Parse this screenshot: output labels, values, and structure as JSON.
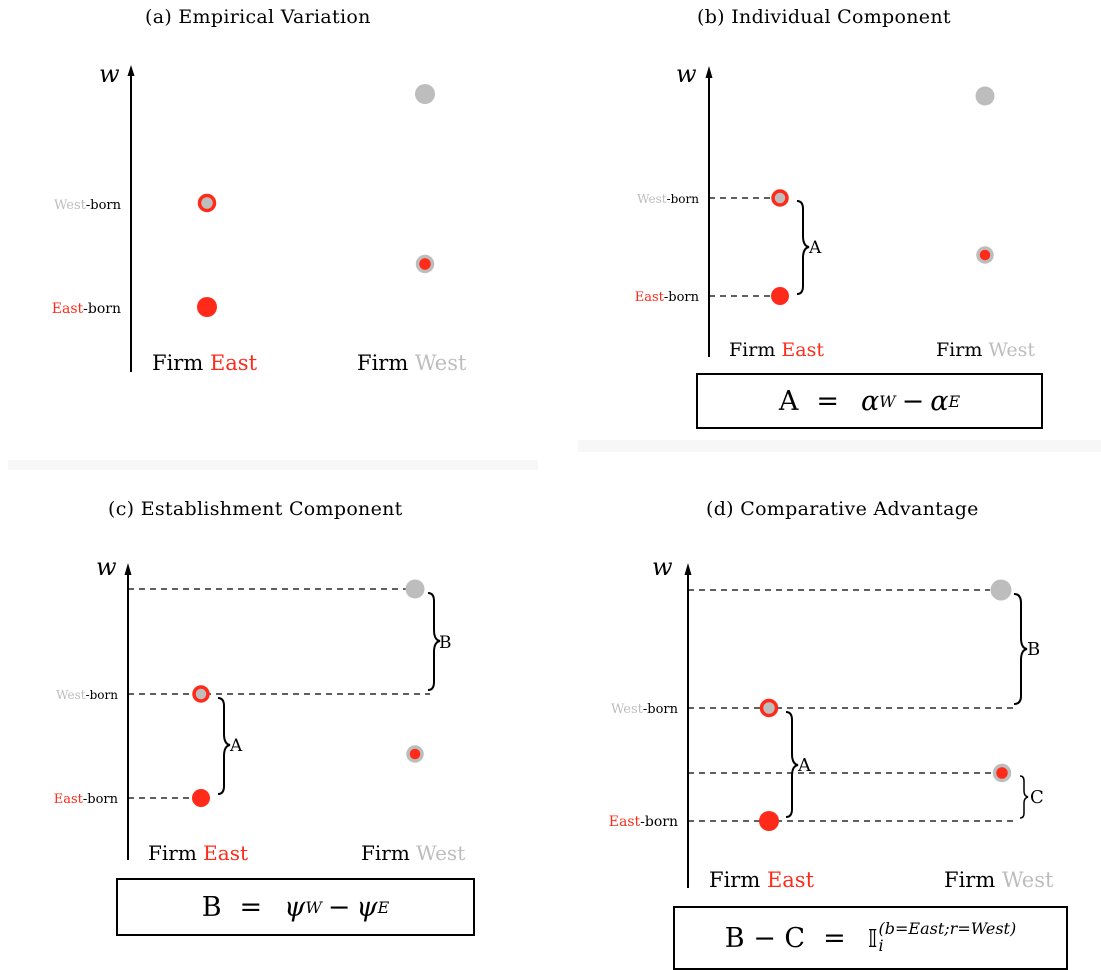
{
  "colors": {
    "east": "#ff2a1a",
    "west": "#bdbdbd",
    "axis": "#000000"
  },
  "axis_label": "w",
  "firm_word": "Firm",
  "east_word": "East",
  "west_word": "West",
  "born_suffix": "-born",
  "panels": [
    {
      "title": "(a) Empirical Variation"
    },
    {
      "title": "(b) Individual Component"
    },
    {
      "title": "(c) Establishment Component"
    },
    {
      "title": "(d) Comparative Advantage"
    }
  ],
  "bracket_labels": {
    "a": "A",
    "b": "B",
    "c": "C"
  },
  "formulas": {
    "b": {
      "lhs": "A",
      "eq": "=",
      "t1": "α",
      "t1sup": "W",
      "minus": "−",
      "t2": "α",
      "t2sup": "E"
    },
    "c": {
      "lhs": "B",
      "eq": "=",
      "t1": "ψ",
      "t1sub": "W",
      "minus": "−",
      "t2": "ψ",
      "t2sub": "E"
    },
    "d": {
      "lhs": "B − C",
      "eq": "=",
      "symbol": "𝕀",
      "sup": "(b=East;r=West)",
      "sub": "i"
    }
  }
}
